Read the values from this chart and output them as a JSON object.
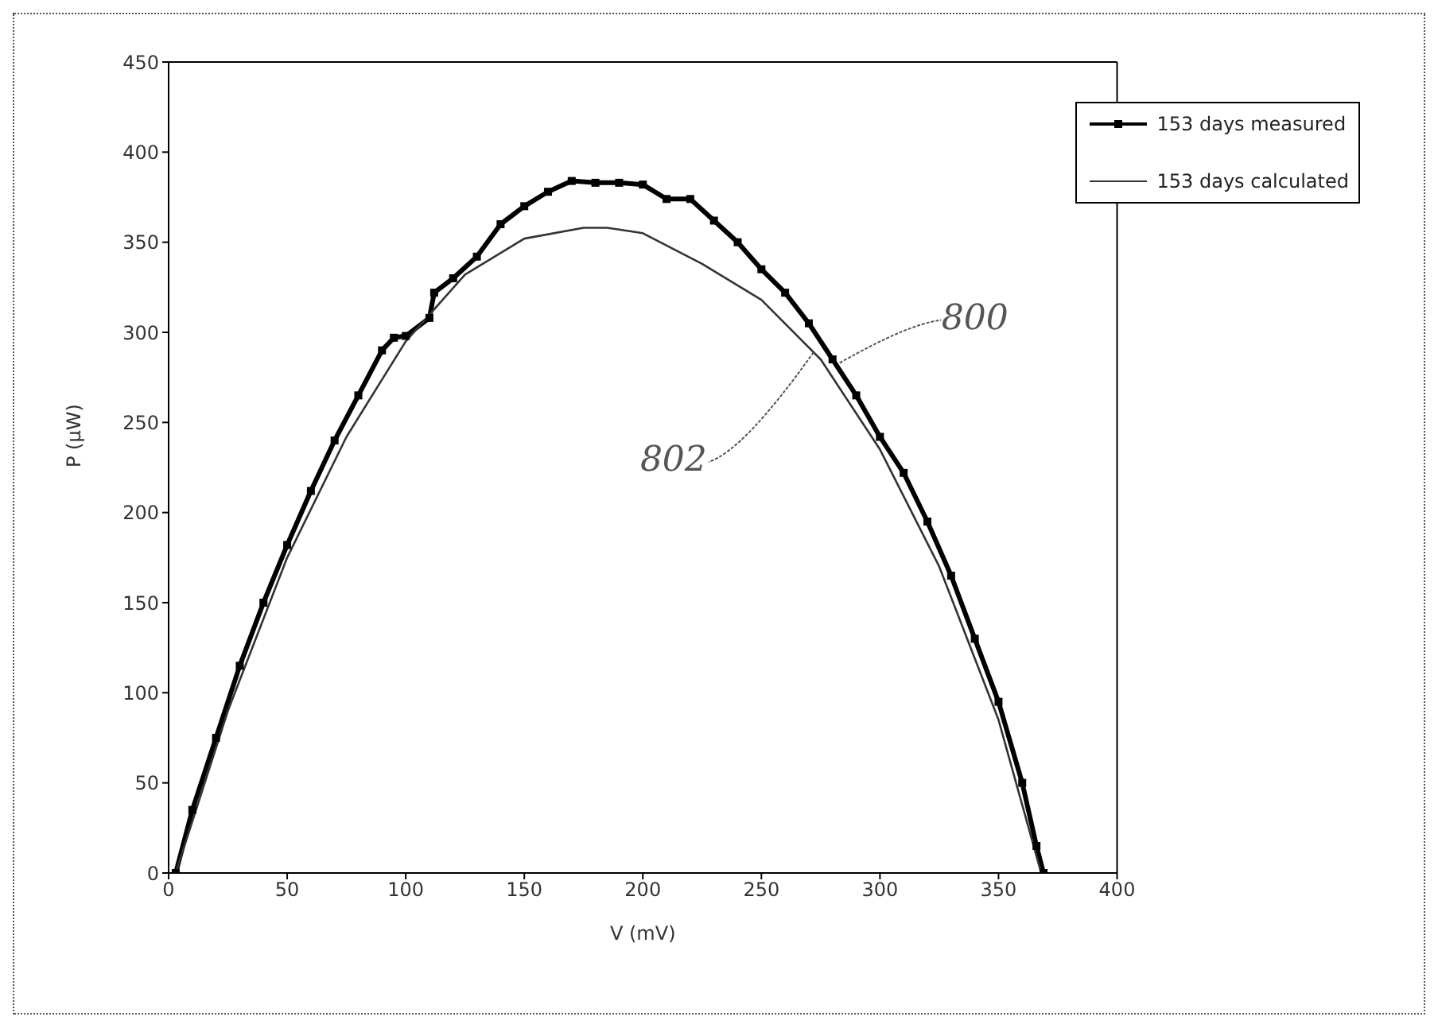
{
  "chart_data": {
    "type": "line",
    "xlabel": "V (mV)",
    "ylabel": "P (μW)",
    "xlim": [
      0,
      400
    ],
    "xticks": [
      0,
      50,
      100,
      150,
      200,
      250,
      300,
      350,
      400
    ],
    "ylim": [
      0,
      450
    ],
    "yticks": [
      0,
      50,
      100,
      150,
      200,
      250,
      300,
      350,
      400,
      450
    ],
    "legend": "top right",
    "series": [
      {
        "name": "153 days measured",
        "color": "#000000",
        "marker": "square",
        "x": [
          3,
          10,
          20,
          30,
          40,
          50,
          60,
          70,
          80,
          90,
          95,
          100,
          110,
          112,
          120,
          130,
          140,
          150,
          160,
          170,
          180,
          190,
          200,
          210,
          220,
          230,
          240,
          250,
          260,
          270,
          280,
          290,
          300,
          310,
          320,
          330,
          340,
          350,
          360,
          366,
          369
        ],
        "values": [
          0,
          35,
          75,
          115,
          150,
          182,
          212,
          240,
          265,
          290,
          297,
          298,
          308,
          322,
          330,
          342,
          360,
          370,
          378,
          384,
          383,
          383,
          382,
          374,
          374,
          362,
          350,
          335,
          322,
          305,
          285,
          265,
          242,
          222,
          195,
          165,
          130,
          95,
          50,
          15,
          0
        ]
      },
      {
        "name": "153 days calculated",
        "color": "#333333",
        "marker": "none",
        "x": [
          3,
          25,
          50,
          75,
          100,
          125,
          150,
          175,
          185,
          200,
          225,
          250,
          275,
          300,
          325,
          350,
          368
        ],
        "values": [
          0,
          90,
          175,
          242,
          295,
          332,
          352,
          358,
          358,
          355,
          338,
          318,
          285,
          235,
          170,
          85,
          0
        ]
      }
    ],
    "annotations": [
      {
        "text": "800",
        "x": 283,
        "y": 283
      },
      {
        "text": "802",
        "x": 272,
        "y": 289
      }
    ]
  }
}
